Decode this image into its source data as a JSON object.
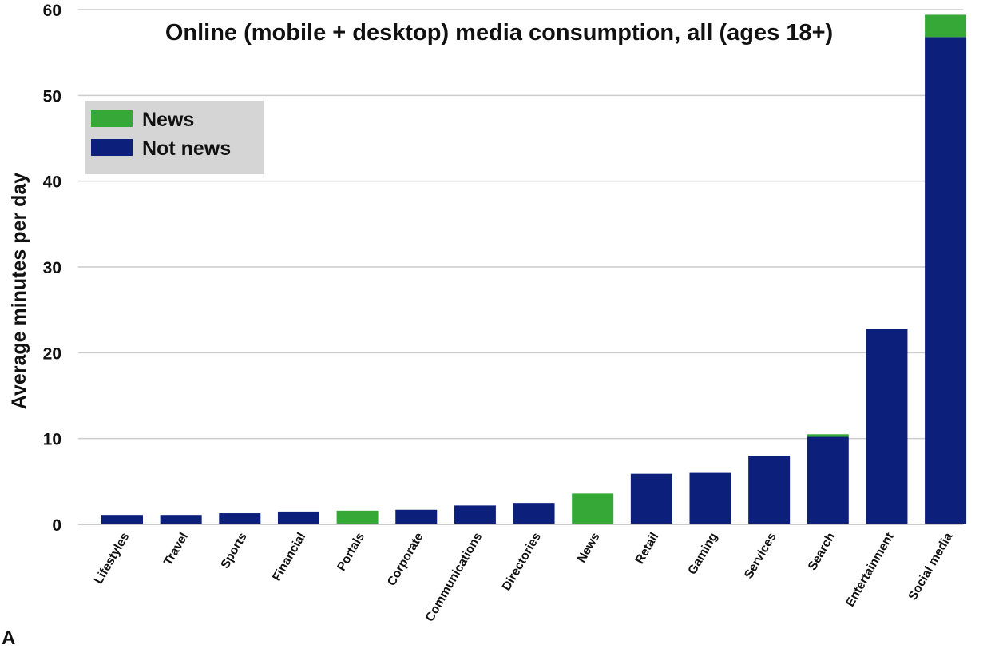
{
  "panel_label": "A",
  "chart_data": {
    "type": "bar",
    "stacked": true,
    "title": "Online (mobile + desktop) media consumption, all (ages 18+)",
    "xlabel": "",
    "ylabel": "Average minutes per day",
    "ylim": [
      0,
      60
    ],
    "yticks": [
      0,
      10,
      20,
      30,
      40,
      50,
      60
    ],
    "grid": true,
    "legend_position": "top-left",
    "categories": [
      "Lifestyles",
      "Travel",
      "Sports",
      "Financial",
      "Portals",
      "Corporate",
      "Communications",
      "Directories",
      "News",
      "Retail",
      "Gaming",
      "Services",
      "Search",
      "Entertainment",
      "Social media"
    ],
    "series": [
      {
        "name": "Not news",
        "color": "#0c1f7a",
        "values": [
          1.1,
          1.1,
          1.3,
          1.5,
          0,
          1.7,
          2.2,
          2.5,
          0,
          5.9,
          6.0,
          8.0,
          10.2,
          22.8,
          56.8
        ]
      },
      {
        "name": "News",
        "color": "#35a838",
        "values": [
          0,
          0,
          0,
          0,
          1.6,
          0,
          0,
          0,
          3.6,
          0,
          0,
          0,
          0.3,
          0,
          2.6
        ]
      }
    ],
    "legend": [
      {
        "name": "News",
        "color": "#35a838"
      },
      {
        "name": "Not news",
        "color": "#0c1f7a"
      }
    ]
  }
}
